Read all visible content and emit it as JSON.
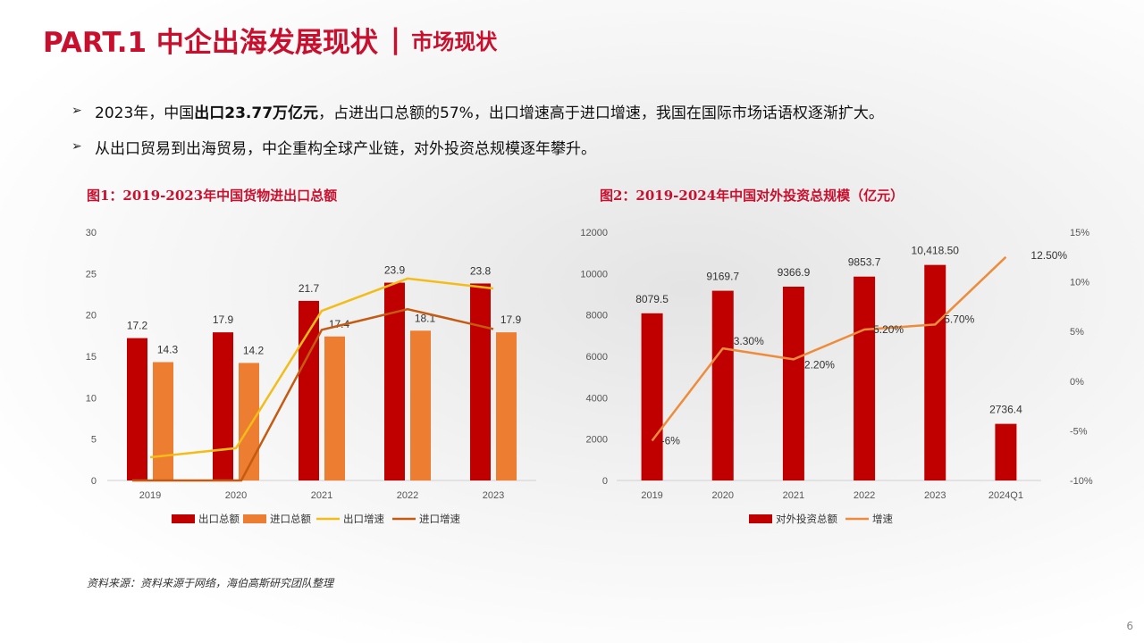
{
  "header": {
    "title": "PART.1 中企出海发展现状",
    "separator": "|",
    "subtitle": "市场现状"
  },
  "bullets": [
    {
      "marker": "➢",
      "prefix": "2023年，中国",
      "bold": "出口23.77万亿元",
      "suffix": "，占进出口总额的57%，出口增速高于进口增速，我国在国际市场话语权逐渐扩大。"
    },
    {
      "marker": "➢",
      "prefix": "从出口贸易到出海贸易，中企重构全球产业链，对外投资总规模逐年攀升。",
      "bold": "",
      "suffix": ""
    }
  ],
  "source": "资料来源：资料来源于网络，海伯高斯研究团队整理",
  "page_number": "6",
  "colors": {
    "brand_red": "#c8102e",
    "bar_red": "#c00000",
    "bar_orange": "#ed7d31",
    "line_yellow": "#f2bd18",
    "line_brown": "#c55a11",
    "line_orange": "#ed8c3c"
  },
  "chart_data": [
    {
      "type": "bar",
      "title": "图1：2019-2023年中国货物进出口总额",
      "categories": [
        "2019",
        "2020",
        "2021",
        "2022",
        "2023"
      ],
      "yticks": [
        "0",
        "5",
        "10",
        "15",
        "20",
        "25",
        "30"
      ],
      "ylim": [
        0,
        30
      ],
      "series": [
        {
          "name": "出口总额",
          "kind": "bar",
          "values": [
            17.2,
            17.9,
            21.7,
            23.9,
            23.8
          ],
          "labels": [
            "17.2",
            "17.9",
            "21.7",
            "23.9",
            "23.8"
          ]
        },
        {
          "name": "进口总额",
          "kind": "bar",
          "values": [
            14.3,
            14.2,
            17.4,
            18.1,
            17.9
          ],
          "labels": [
            "14.3",
            "14.2",
            "17.4",
            "18.1",
            "17.9"
          ]
        },
        {
          "name": "出口增速",
          "kind": "line",
          "values": [
            2.8,
            3.9,
            20.5,
            24.4,
            23.2
          ]
        },
        {
          "name": "进口增速",
          "kind": "line",
          "values": [
            0,
            0,
            18.2,
            20.7,
            18.3
          ]
        }
      ],
      "legend_position": "bottom"
    },
    {
      "type": "bar",
      "title": "图2：2019-2024年中国对外投资总规模（亿元）",
      "categories": [
        "2019",
        "2020",
        "2021",
        "2022",
        "2023",
        "2024Q1"
      ],
      "yticks": [
        "0",
        "2000",
        "4000",
        "6000",
        "8000",
        "10000",
        "12000"
      ],
      "ylim": [
        0,
        12000
      ],
      "y2ticks": [
        "-10%",
        "-5%",
        "0%",
        "5%",
        "10%",
        "15%"
      ],
      "y2lim": [
        -10,
        15
      ],
      "series": [
        {
          "name": "对外投资总额",
          "kind": "bar",
          "values": [
            8079.5,
            9169.7,
            9366.9,
            9853.7,
            10418.5,
            2736.4
          ],
          "labels": [
            "8079.5",
            "9169.7",
            "9366.9",
            "9853.7",
            "10,418.50",
            "2736.4"
          ]
        },
        {
          "name": "增速",
          "kind": "line",
          "axis": "right",
          "values": [
            -6,
            3.3,
            2.2,
            5.2,
            5.7,
            12.5
          ],
          "labels": [
            "-6%",
            "3.30%",
            "2.20%",
            "5.20%",
            "5.70%",
            "12.50%"
          ]
        }
      ],
      "legend_position": "bottom"
    }
  ]
}
